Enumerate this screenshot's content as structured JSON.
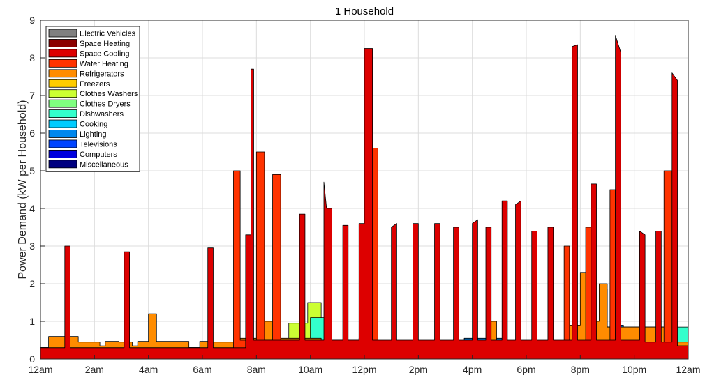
{
  "chart_data": {
    "type": "area",
    "title": "1 Household",
    "ylabel": "Power Demand (kW per Household)",
    "xlabel": "",
    "ylim": [
      0,
      9
    ],
    "xlim": [
      0,
      24
    ],
    "grid": true,
    "legend_placement": "top-left",
    "yticks": [
      0,
      1,
      2,
      3,
      4,
      5,
      6,
      7,
      8,
      9
    ],
    "xticks": [
      {
        "v": 0,
        "label": "12am"
      },
      {
        "v": 2,
        "label": "2am"
      },
      {
        "v": 4,
        "label": "4am"
      },
      {
        "v": 6,
        "label": "6am"
      },
      {
        "v": 8,
        "label": "8am"
      },
      {
        "v": 10,
        "label": "10am"
      },
      {
        "v": 12,
        "label": "12pm"
      },
      {
        "v": 14,
        "label": "2pm"
      },
      {
        "v": 16,
        "label": "4pm"
      },
      {
        "v": 18,
        "label": "6pm"
      },
      {
        "v": 20,
        "label": "8pm"
      },
      {
        "v": 22,
        "label": "10pm"
      },
      {
        "v": 24,
        "label": "12am"
      }
    ],
    "legend": [
      {
        "name": "Electric Vehicles",
        "color": "#808080"
      },
      {
        "name": "Space Heating",
        "color": "#8b0000"
      },
      {
        "name": "Space Cooling",
        "color": "#dd0000"
      },
      {
        "name": "Water Heating",
        "color": "#ff3300"
      },
      {
        "name": "Refrigerators",
        "color": "#ff8c00"
      },
      {
        "name": "Freezers",
        "color": "#ffcc00"
      },
      {
        "name": "Clothes Washers",
        "color": "#ccff33"
      },
      {
        "name": "Clothes Dryers",
        "color": "#7fff7f"
      },
      {
        "name": "Dishwashers",
        "color": "#33ffcc"
      },
      {
        "name": "Cooking",
        "color": "#00ccff"
      },
      {
        "name": "Lighting",
        "color": "#0088ee"
      },
      {
        "name": "Televisions",
        "color": "#0044ff"
      },
      {
        "name": "Computers",
        "color": "#0000dd"
      },
      {
        "name": "Miscellaneous",
        "color": "#000080"
      }
    ],
    "layers": [
      {
        "name": "Miscellaneous",
        "color": "#000080",
        "points": [
          [
            0,
            0.3
          ],
          [
            7.25,
            0.3
          ],
          [
            7.25,
            0.35
          ],
          [
            24,
            0.35
          ]
        ]
      },
      {
        "name": "Lighting",
        "color": "#0088ee",
        "points": [
          [
            0,
            0.3
          ],
          [
            0.8,
            0.3
          ],
          [
            0.8,
            0.42
          ],
          [
            1.4,
            0.42
          ],
          [
            1.4,
            0.3
          ],
          [
            7.25,
            0.3
          ],
          [
            7.25,
            0.48
          ],
          [
            7.5,
            0.48
          ],
          [
            7.5,
            0.35
          ],
          [
            8.6,
            0.35
          ],
          [
            8.6,
            0.4
          ],
          [
            9.8,
            0.4
          ],
          [
            9.8,
            0.45
          ],
          [
            10.8,
            0.45
          ],
          [
            10.8,
            0.35
          ],
          [
            15.7,
            0.35
          ],
          [
            15.7,
            0.55
          ],
          [
            17.1,
            0.55
          ],
          [
            17.1,
            0.4
          ],
          [
            19.5,
            0.4
          ],
          [
            19.5,
            0.6
          ],
          [
            20.2,
            0.6
          ],
          [
            20.2,
            0.95
          ],
          [
            20.4,
            0.95
          ],
          [
            20.4,
            0.85
          ],
          [
            21.1,
            0.85
          ],
          [
            21.1,
            0.9
          ],
          [
            21.6,
            0.9
          ],
          [
            21.6,
            0.8
          ],
          [
            23.4,
            0.8
          ],
          [
            23.4,
            0.35
          ],
          [
            24,
            0.35
          ]
        ]
      },
      {
        "name": "Cooking",
        "color": "#00ccff",
        "points": [
          [
            0,
            0.3
          ],
          [
            8.55,
            0.3
          ],
          [
            8.55,
            0.95
          ],
          [
            8.9,
            0.95
          ],
          [
            8.9,
            0.4
          ],
          [
            19.5,
            0.4
          ],
          [
            19.5,
            0.6
          ],
          [
            20.2,
            0.6
          ],
          [
            20.2,
            1.0
          ],
          [
            20.5,
            1.0
          ],
          [
            20.5,
            0.85
          ],
          [
            23.4,
            0.85
          ],
          [
            23.4,
            0.35
          ],
          [
            24,
            0.35
          ]
        ]
      },
      {
        "name": "Clothes Washers",
        "color": "#ccff33",
        "points": [
          [
            0,
            0.3
          ],
          [
            9.2,
            0.3
          ],
          [
            9.2,
            0.95
          ],
          [
            9.9,
            0.95
          ],
          [
            9.9,
            1.5
          ],
          [
            10.4,
            1.5
          ],
          [
            10.4,
            0.4
          ],
          [
            24,
            0.4
          ]
        ]
      },
      {
        "name": "Dishwashers",
        "color": "#33ffcc",
        "points": [
          [
            0,
            0.3
          ],
          [
            10.0,
            0.3
          ],
          [
            10.0,
            1.1
          ],
          [
            10.8,
            1.1
          ],
          [
            10.8,
            0.4
          ],
          [
            19.6,
            0.4
          ],
          [
            19.6,
            0.8
          ],
          [
            20.1,
            0.8
          ],
          [
            20.1,
            2.0
          ],
          [
            20.5,
            2.0
          ],
          [
            20.5,
            0.85
          ],
          [
            20.7,
            0.85
          ],
          [
            20.7,
            1.85
          ],
          [
            21.0,
            1.85
          ],
          [
            21.0,
            0.85
          ],
          [
            24,
            0.85
          ]
        ]
      },
      {
        "name": "Refrigerators",
        "color": "#ff8c00",
        "points": [
          [
            0,
            0.3
          ],
          [
            0.3,
            0.3
          ],
          [
            0.3,
            0.6
          ],
          [
            1.4,
            0.6
          ],
          [
            1.4,
            0.45
          ],
          [
            2.2,
            0.45
          ],
          [
            2.2,
            0.35
          ],
          [
            2.4,
            0.35
          ],
          [
            2.4,
            0.47
          ],
          [
            2.9,
            0.47
          ],
          [
            2.9,
            0.45
          ],
          [
            3.4,
            0.45
          ],
          [
            3.4,
            0.35
          ],
          [
            3.6,
            0.35
          ],
          [
            3.6,
            0.47
          ],
          [
            4.0,
            0.47
          ],
          [
            4.0,
            1.2
          ],
          [
            4.3,
            1.2
          ],
          [
            4.3,
            0.47
          ],
          [
            5.5,
            0.47
          ],
          [
            5.5,
            0.3
          ],
          [
            5.9,
            0.3
          ],
          [
            5.9,
            0.47
          ],
          [
            6.3,
            0.47
          ],
          [
            6.3,
            0.45
          ],
          [
            7.25,
            0.45
          ],
          [
            7.25,
            0.55
          ],
          [
            8.0,
            0.55
          ],
          [
            8.0,
            1.0
          ],
          [
            8.9,
            1.0
          ],
          [
            8.9,
            0.55
          ],
          [
            10.4,
            0.55
          ],
          [
            10.4,
            0.45
          ],
          [
            11.8,
            0.45
          ],
          [
            11.8,
            0.55
          ],
          [
            12.2,
            0.55
          ],
          [
            12.2,
            1.1
          ],
          [
            12.4,
            1.1
          ],
          [
            12.4,
            0.45
          ],
          [
            16.6,
            0.45
          ],
          [
            16.6,
            1.0
          ],
          [
            16.9,
            1.0
          ],
          [
            16.9,
            0.45
          ],
          [
            19.5,
            0.45
          ],
          [
            19.5,
            0.9
          ],
          [
            20.0,
            0.9
          ],
          [
            20.0,
            2.3
          ],
          [
            20.5,
            2.3
          ],
          [
            20.5,
            1.0
          ],
          [
            20.7,
            1.0
          ],
          [
            20.7,
            2.0
          ],
          [
            21.0,
            2.0
          ],
          [
            21.0,
            0.85
          ],
          [
            23.4,
            0.85
          ],
          [
            23.4,
            0.45
          ],
          [
            24,
            0.45
          ]
        ]
      },
      {
        "name": "Water Heating",
        "color": "#ff3300",
        "points": [
          [
            0,
            0.3
          ],
          [
            7.15,
            0.3
          ],
          [
            7.15,
            5.0
          ],
          [
            7.4,
            5.0
          ],
          [
            7.4,
            0.5
          ],
          [
            8.0,
            0.5
          ],
          [
            8.0,
            5.5
          ],
          [
            8.3,
            5.5
          ],
          [
            8.3,
            0.5
          ],
          [
            8.6,
            0.5
          ],
          [
            8.6,
            4.9
          ],
          [
            8.9,
            4.9
          ],
          [
            8.9,
            0.5
          ],
          [
            12.2,
            0.5
          ],
          [
            12.2,
            5.6
          ],
          [
            12.5,
            5.6
          ],
          [
            12.5,
            0.45
          ],
          [
            19.4,
            0.45
          ],
          [
            19.4,
            3.0
          ],
          [
            19.6,
            3.0
          ],
          [
            19.6,
            0.45
          ],
          [
            20.2,
            0.45
          ],
          [
            20.2,
            3.5
          ],
          [
            20.4,
            3.5
          ],
          [
            20.4,
            0.45
          ],
          [
            21.1,
            0.45
          ],
          [
            21.1,
            4.5
          ],
          [
            21.3,
            4.5
          ],
          [
            21.3,
            0.45
          ],
          [
            23.1,
            0.45
          ],
          [
            23.1,
            5.0
          ],
          [
            23.4,
            5.0
          ],
          [
            23.4,
            0.35
          ],
          [
            24,
            0.35
          ]
        ]
      },
      {
        "name": "Space Cooling",
        "color": "#dd0000",
        "points": [
          [
            0,
            0.3
          ],
          [
            0.9,
            0.3
          ],
          [
            0.9,
            3.0
          ],
          [
            1.1,
            3.0
          ],
          [
            1.1,
            0.3
          ],
          [
            3.1,
            0.3
          ],
          [
            3.1,
            2.85
          ],
          [
            3.3,
            2.85
          ],
          [
            3.3,
            0.3
          ],
          [
            6.2,
            0.3
          ],
          [
            6.2,
            2.95
          ],
          [
            6.4,
            2.95
          ],
          [
            6.4,
            0.3
          ],
          [
            7.6,
            0.3
          ],
          [
            7.6,
            3.3
          ],
          [
            7.8,
            3.3
          ],
          [
            7.8,
            7.7
          ],
          [
            7.9,
            7.7
          ],
          [
            7.9,
            0.5
          ],
          [
            9.6,
            0.5
          ],
          [
            9.6,
            3.85
          ],
          [
            9.8,
            3.85
          ],
          [
            9.8,
            0.5
          ],
          [
            10.5,
            0.5
          ],
          [
            10.5,
            4.7
          ],
          [
            10.6,
            4.0
          ],
          [
            10.8,
            4.0
          ],
          [
            10.8,
            0.5
          ],
          [
            11.2,
            0.5
          ],
          [
            11.2,
            3.55
          ],
          [
            11.4,
            3.55
          ],
          [
            11.4,
            0.5
          ],
          [
            11.8,
            0.5
          ],
          [
            11.8,
            3.6
          ],
          [
            12.0,
            3.6
          ],
          [
            12.0,
            8.25
          ],
          [
            12.3,
            8.25
          ],
          [
            12.3,
            0.5
          ],
          [
            13.0,
            0.5
          ],
          [
            13.0,
            3.5
          ],
          [
            13.2,
            3.6
          ],
          [
            13.2,
            0.5
          ],
          [
            13.8,
            0.5
          ],
          [
            13.8,
            3.6
          ],
          [
            14.0,
            3.6
          ],
          [
            14.0,
            0.5
          ],
          [
            14.6,
            0.5
          ],
          [
            14.6,
            3.6
          ],
          [
            14.8,
            3.6
          ],
          [
            14.8,
            0.5
          ],
          [
            15.3,
            0.5
          ],
          [
            15.3,
            3.5
          ],
          [
            15.5,
            3.5
          ],
          [
            15.5,
            0.5
          ],
          [
            16.0,
            0.5
          ],
          [
            16.0,
            3.6
          ],
          [
            16.2,
            3.7
          ],
          [
            16.2,
            0.5
          ],
          [
            16.5,
            0.5
          ],
          [
            16.5,
            3.5
          ],
          [
            16.7,
            3.5
          ],
          [
            16.7,
            0.5
          ],
          [
            17.1,
            0.5
          ],
          [
            17.1,
            4.2
          ],
          [
            17.3,
            4.2
          ],
          [
            17.3,
            0.5
          ],
          [
            17.6,
            0.5
          ],
          [
            17.6,
            4.1
          ],
          [
            17.8,
            4.2
          ],
          [
            17.8,
            0.5
          ],
          [
            18.2,
            0.5
          ],
          [
            18.2,
            3.4
          ],
          [
            18.4,
            3.4
          ],
          [
            18.4,
            0.5
          ],
          [
            18.8,
            0.5
          ],
          [
            18.8,
            3.5
          ],
          [
            19.0,
            3.5
          ],
          [
            19.0,
            0.5
          ],
          [
            19.7,
            0.5
          ],
          [
            19.7,
            8.3
          ],
          [
            19.9,
            8.35
          ],
          [
            19.9,
            0.5
          ],
          [
            20.4,
            0.5
          ],
          [
            20.4,
            4.65
          ],
          [
            20.6,
            4.65
          ],
          [
            20.6,
            0.5
          ],
          [
            21.3,
            0.5
          ],
          [
            21.3,
            8.6
          ],
          [
            21.5,
            8.15
          ],
          [
            21.5,
            0.5
          ],
          [
            22.2,
            0.5
          ],
          [
            22.2,
            3.4
          ],
          [
            22.4,
            3.3
          ],
          [
            22.4,
            0.45
          ],
          [
            22.8,
            0.45
          ],
          [
            22.8,
            3.4
          ],
          [
            23.0,
            3.4
          ],
          [
            23.0,
            0.45
          ],
          [
            23.4,
            0.45
          ],
          [
            23.4,
            7.6
          ],
          [
            23.6,
            7.4
          ],
          [
            23.6,
            0.35
          ],
          [
            24,
            0.35
          ]
        ]
      }
    ]
  }
}
